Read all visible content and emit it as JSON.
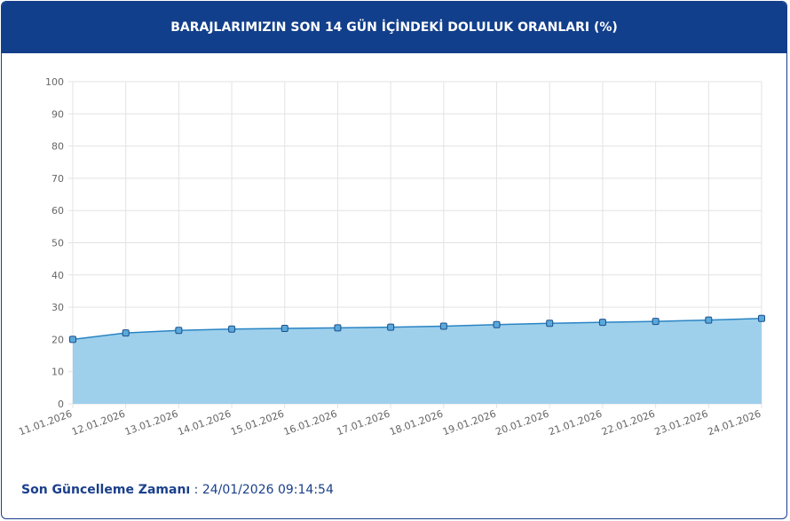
{
  "chart_data": {
    "type": "line",
    "title": "BARAJLARIMIZIN SON 14 GÜN İÇİNDEKİ DOLULUK ORANLARI (%)",
    "categories": [
      "11.01.2026",
      "12.01.2026",
      "13.01.2026",
      "14.01.2026",
      "15.01.2026",
      "16.01.2026",
      "17.01.2026",
      "18.01.2026",
      "19.01.2026",
      "20.01.2026",
      "21.01.2026",
      "22.01.2026",
      "23.01.2026",
      "24.01.2026"
    ],
    "values": [
      20.0,
      22.0,
      22.8,
      23.2,
      23.4,
      23.6,
      23.8,
      24.1,
      24.6,
      25.0,
      25.3,
      25.6,
      26.0,
      26.5
    ],
    "color": "#2a84c4",
    "fill": "#9ed0ec",
    "ylim": [
      0,
      100
    ],
    "yticks": [
      0,
      10,
      20,
      30,
      40,
      50,
      60,
      70,
      80,
      90,
      100
    ],
    "grid": true
  },
  "footer": {
    "label": "Son Güncelleme Zamanı",
    "value": ": 24/01/2026 09:14:54"
  }
}
